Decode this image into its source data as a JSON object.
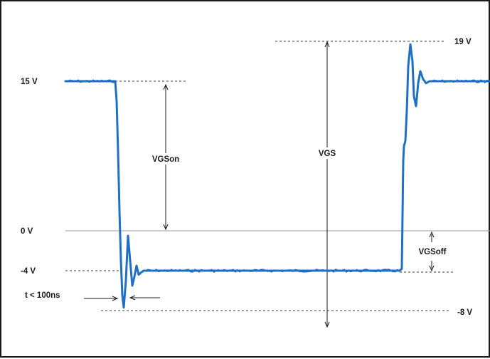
{
  "chart_data": {
    "type": "line",
    "title": "",
    "xlabel": "",
    "ylabel": "",
    "ylim": [
      -9,
      20
    ],
    "grid": false,
    "line_color": "#1f6fc5",
    "reference_levels": [
      {
        "label": "19 V",
        "value": 19
      },
      {
        "label": "15 V",
        "value": 15
      },
      {
        "label": "0 V",
        "value": 0
      },
      {
        "label": "-4 V",
        "value": -4
      },
      {
        "label": "-8 V",
        "value": -8
      }
    ],
    "series": [
      {
        "points": [
          [
            0,
            15
          ],
          [
            70,
            15
          ],
          [
            72,
            13
          ],
          [
            74,
            8
          ],
          [
            76,
            2
          ],
          [
            78,
            -3
          ],
          [
            80,
            -6.5
          ],
          [
            82,
            -7.7
          ],
          [
            85,
            -5
          ],
          [
            88,
            -0.5
          ],
          [
            91,
            -3
          ],
          [
            94,
            -5.5
          ],
          [
            97,
            -4.6
          ],
          [
            100,
            -3.5
          ],
          [
            103,
            -4.4
          ],
          [
            106,
            -4.2
          ],
          [
            110,
            -4
          ],
          [
            470,
            -4
          ],
          [
            473,
            -3.8
          ],
          [
            475,
            7
          ],
          [
            476,
            8.5
          ],
          [
            478,
            9
          ],
          [
            480,
            12
          ],
          [
            482,
            16.5
          ],
          [
            485,
            18.7
          ],
          [
            488,
            17
          ],
          [
            490,
            13.5
          ],
          [
            493,
            12.5
          ],
          [
            496,
            14.8
          ],
          [
            499,
            16
          ],
          [
            503,
            15.2
          ],
          [
            507,
            14.8
          ],
          [
            512,
            15
          ],
          [
            600,
            15
          ]
        ]
      }
    ],
    "annotations": [
      {
        "text": "VGSon"
      },
      {
        "text": "VGS"
      },
      {
        "text": "VGSoff"
      },
      {
        "text": "t < 100ns"
      }
    ]
  }
}
